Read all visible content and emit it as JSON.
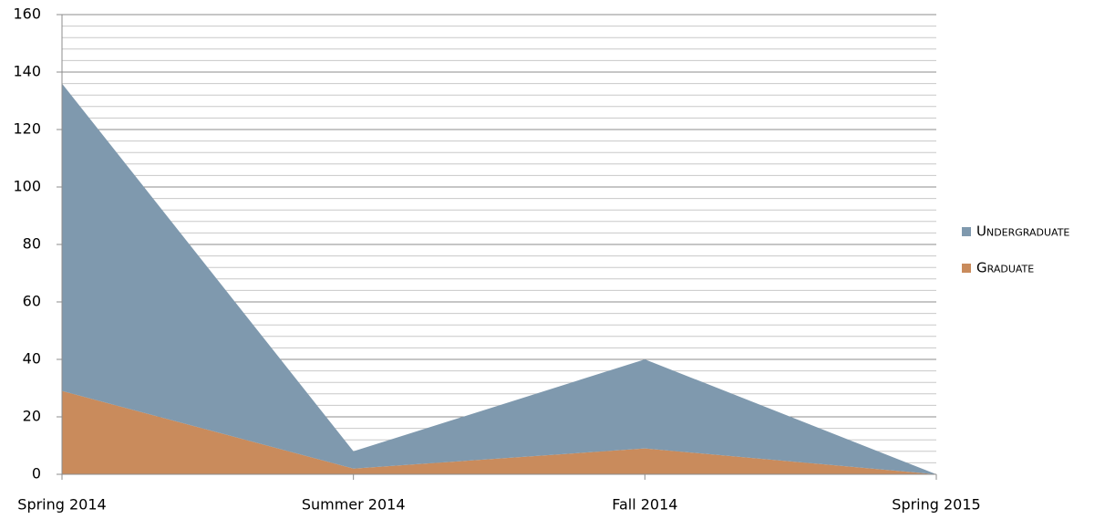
{
  "chart_data": {
    "type": "stacked_area",
    "categories": [
      "Spring 2014",
      "Summer 2014",
      "Fall 2014",
      "Spring 2015"
    ],
    "series": [
      {
        "name": "Graduate",
        "color": "#c98b5c",
        "values": [
          29,
          2,
          9,
          0
        ]
      },
      {
        "name": "Undergraduate",
        "color": "#7f99ae",
        "values": [
          107,
          6,
          31,
          0
        ]
      }
    ],
    "ylim": [
      0,
      160
    ],
    "yticks": [
      0,
      20,
      40,
      60,
      80,
      100,
      120,
      140,
      160
    ],
    "grid": true,
    "minor_grid_step": 4,
    "legend": "right"
  }
}
